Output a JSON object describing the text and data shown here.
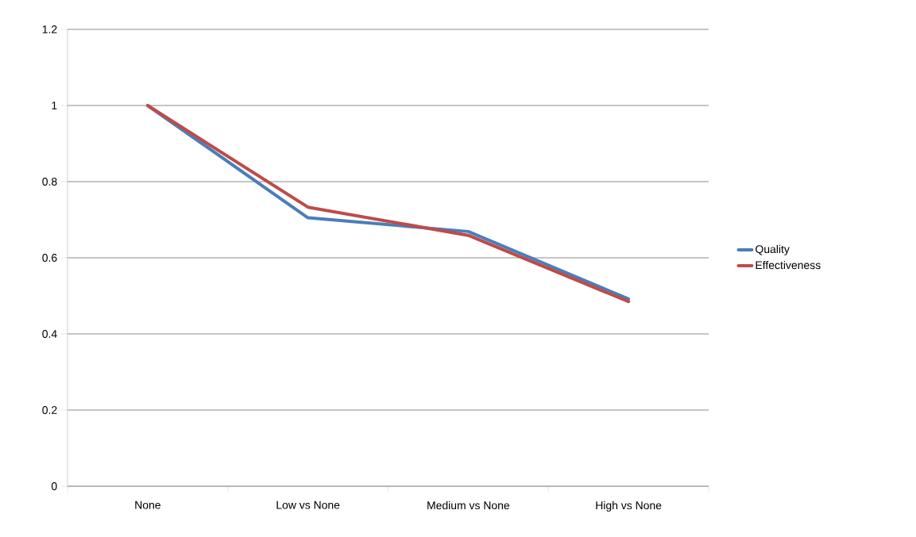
{
  "chart_data": {
    "type": "line",
    "categories": [
      "None",
      "Low vs None",
      "Medium vs None",
      "High vs None"
    ],
    "series": [
      {
        "name": "Quality",
        "color": "#4a7ebb",
        "values": [
          1.0,
          0.705,
          0.669,
          0.492
        ]
      },
      {
        "name": "Effectiveness",
        "color": "#be4b48",
        "values": [
          1.0,
          0.733,
          0.659,
          0.485
        ]
      }
    ],
    "ylim": [
      0,
      1.2
    ],
    "yticks": [
      0,
      0.2,
      0.4,
      0.6,
      0.8,
      1,
      1.2
    ],
    "grid": "y",
    "legend": "right",
    "marker": "none",
    "line_style": "solid"
  }
}
